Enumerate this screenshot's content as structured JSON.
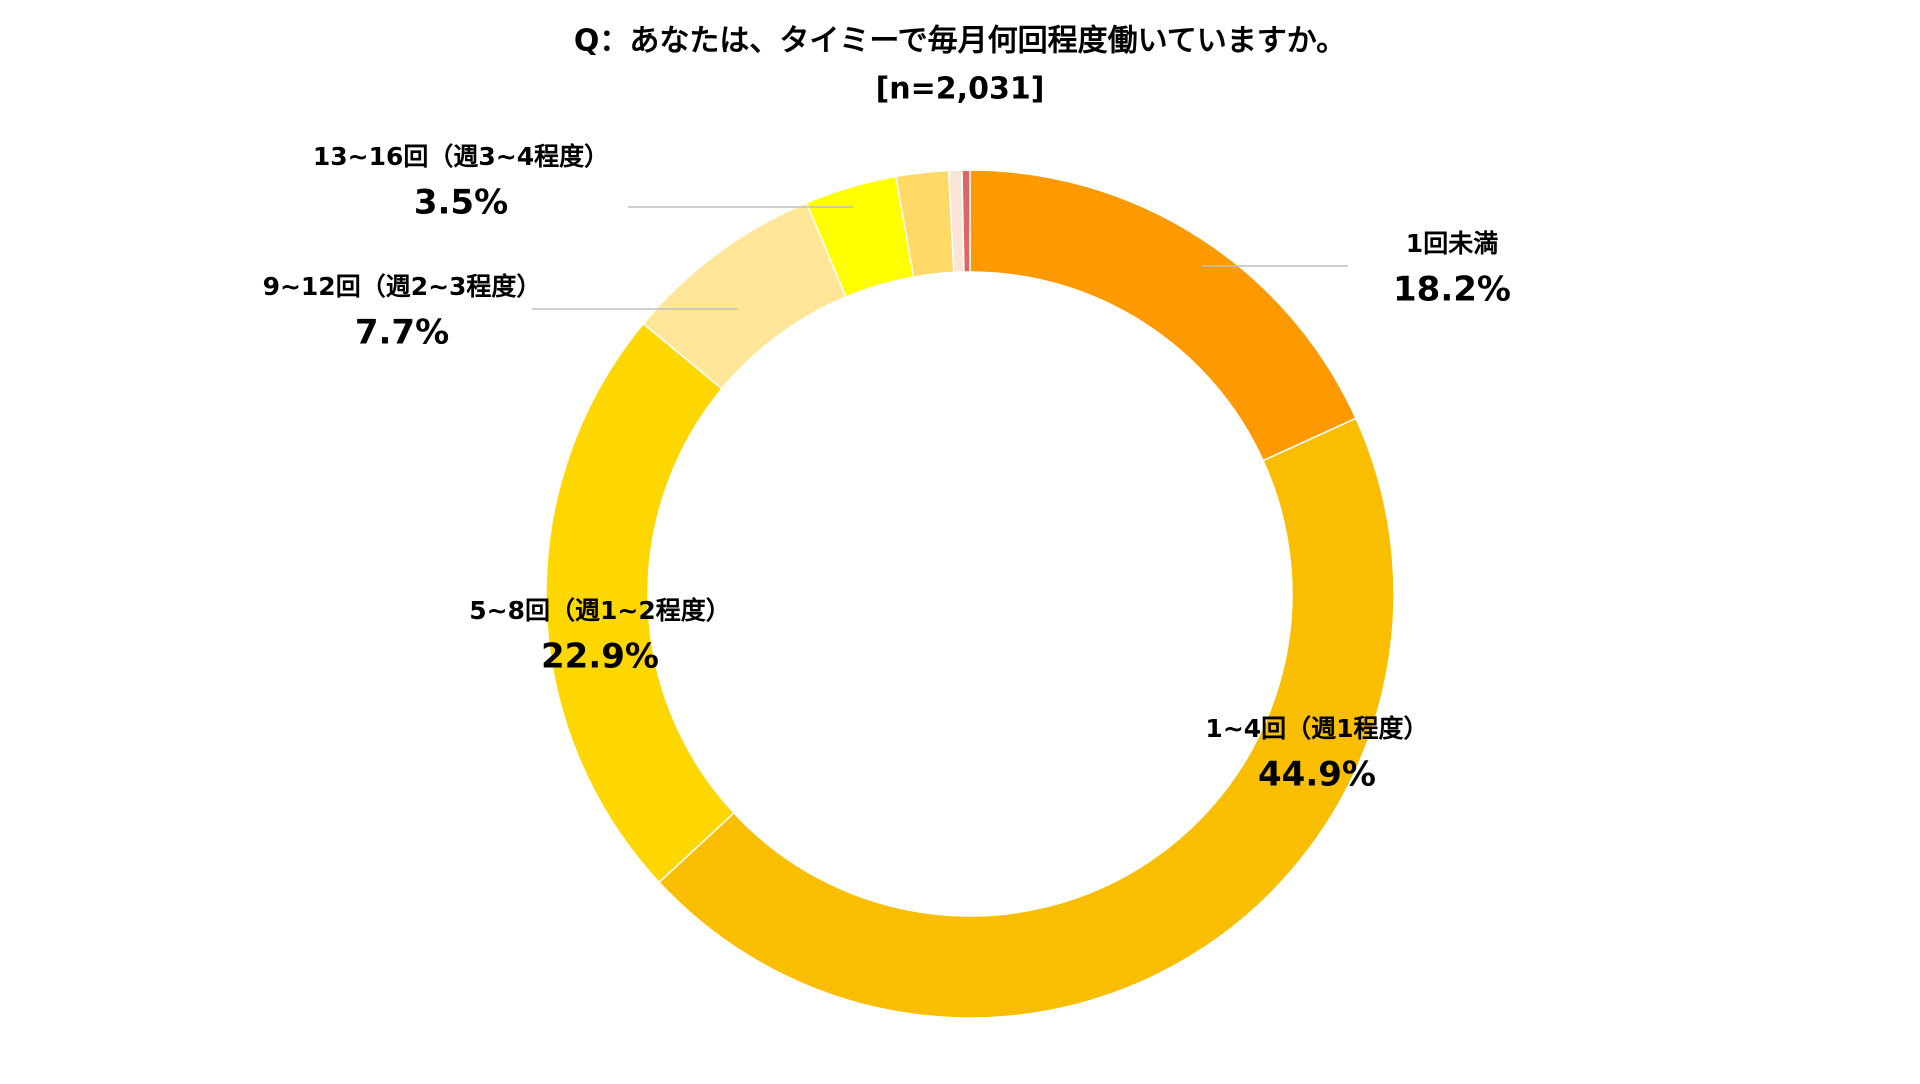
{
  "chart_data": {
    "type": "donut",
    "title": "Q：あなたは、タイミーで毎月何回程度働いていますか。",
    "subtitle": "[n=2,031]",
    "categories": [
      "1回未満",
      "1~4回（週1程度）",
      "5~8回（週1~2程度）",
      "9~12回（週2~3程度）",
      "13~16回（週3~4程度）",
      null,
      null,
      null
    ],
    "values": [
      18.2,
      44.9,
      22.9,
      7.7,
      3.5,
      2.0,
      0.5,
      0.3
    ],
    "value_labels": [
      "18.2%",
      "44.9%",
      "22.9%",
      "7.7%",
      "3.5%",
      null,
      null,
      null
    ],
    "colors": [
      "#FF9900",
      "#F9BE00",
      "#FFD700",
      "#FFE699",
      "#FFFF00",
      "#FFD966",
      "#FCE4D6",
      "#E06666"
    ]
  }
}
